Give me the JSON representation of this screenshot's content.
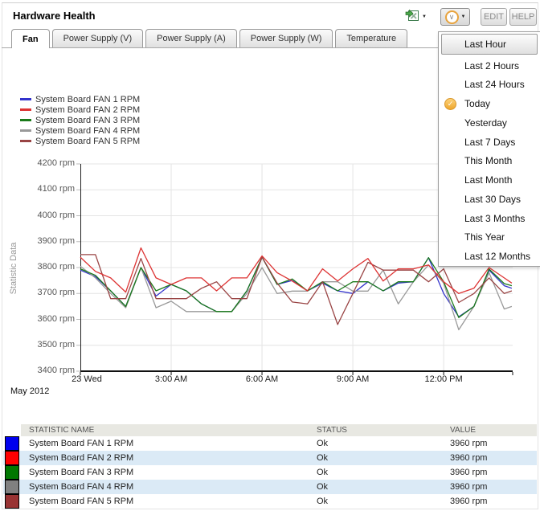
{
  "page": {
    "title": "Hardware Health"
  },
  "toolbar": {
    "export_icon": "excel-export",
    "time_icon": "clock-history",
    "caret": "▼",
    "edit_label": "EDIT",
    "help_label": "HELP"
  },
  "tabs": [
    {
      "label": "Fan",
      "active": true
    },
    {
      "label": "Power Supply (V)",
      "active": false
    },
    {
      "label": "Power Supply (A)",
      "active": false
    },
    {
      "label": "Power Supply (W)",
      "active": false
    },
    {
      "label": "Temperature",
      "active": false
    }
  ],
  "time_menu": {
    "items": [
      {
        "label": "Last Hour",
        "highlighted": true
      },
      {
        "label": "Last 2 Hours"
      },
      {
        "label": "Last 24 Hours"
      },
      {
        "label": "Today",
        "selected": true
      },
      {
        "label": "Yesterday"
      },
      {
        "label": "Last 7 Days"
      },
      {
        "label": "This Month"
      },
      {
        "label": "Last Month"
      },
      {
        "label": "Last 30 Days"
      },
      {
        "label": "Last 3 Months"
      },
      {
        "label": "This Year"
      },
      {
        "label": "Last 12 Months"
      }
    ]
  },
  "chart_data": {
    "type": "line",
    "title": "",
    "ylabel": "Statistic Data",
    "xlabel": "",
    "y_unit": "rpm",
    "ylim": [
      3400,
      4200
    ],
    "y_tick_step": 100,
    "xlim_hours": [
      0,
      14.28
    ],
    "x_ticks": [
      {
        "t": 0,
        "label": "23 Wed"
      },
      {
        "t": 3,
        "label": "3:00 AM"
      },
      {
        "t": 6,
        "label": "6:00 AM"
      },
      {
        "t": 9,
        "label": "9:00 AM"
      },
      {
        "t": 12,
        "label": "12:00 PM"
      }
    ],
    "footnote": "May 2012",
    "grid": true,
    "legend_position": "top-left",
    "x_hours": [
      0,
      0.5,
      1,
      1.5,
      2,
      2.5,
      3,
      3.5,
      4,
      4.5,
      5,
      5.5,
      6,
      6.5,
      7,
      7.5,
      8,
      8.5,
      9,
      9.5,
      10,
      10.5,
      11,
      11.5,
      12,
      12.5,
      13,
      13.5,
      14,
      14.25
    ],
    "series": [
      {
        "name": "System Board FAN 1 RPM",
        "color": "#3333cc",
        "values": [
          3790,
          3765,
          3710,
          3650,
          3800,
          3690,
          3735,
          3710,
          3660,
          3630,
          3630,
          3710,
          3840,
          3735,
          3750,
          3710,
          3740,
          3710,
          3700,
          3745,
          3710,
          3740,
          3745,
          3838,
          3700,
          3610,
          3650,
          3790,
          3730,
          3720
        ]
      },
      {
        "name": "System Board FAN 2 RPM",
        "color": "#dd3333",
        "values": [
          3840,
          3785,
          3760,
          3705,
          3876,
          3760,
          3735,
          3760,
          3760,
          3710,
          3760,
          3760,
          3845,
          3780,
          3748,
          3710,
          3795,
          3748,
          3795,
          3835,
          3748,
          3795,
          3795,
          3810,
          3745,
          3700,
          3720,
          3800,
          3760,
          3740
        ]
      },
      {
        "name": "System Board FAN 3 RPM",
        "color": "#1a7a1a",
        "values": [
          3795,
          3770,
          3710,
          3650,
          3800,
          3710,
          3735,
          3710,
          3660,
          3630,
          3630,
          3710,
          3840,
          3735,
          3756,
          3710,
          3745,
          3710,
          3745,
          3745,
          3710,
          3745,
          3745,
          3838,
          3745,
          3607,
          3650,
          3794,
          3738,
          3730
        ]
      },
      {
        "name": "System Board FAN 4 RPM",
        "color": "#999999",
        "values": [
          3805,
          3760,
          3700,
          3645,
          3800,
          3645,
          3670,
          3630,
          3630,
          3630,
          3630,
          3700,
          3800,
          3700,
          3709,
          3709,
          3745,
          3745,
          3709,
          3709,
          3790,
          3660,
          3745,
          3810,
          3740,
          3560,
          3650,
          3780,
          3640,
          3650
        ]
      },
      {
        "name": "System Board FAN 5 RPM",
        "color": "#994444",
        "values": [
          3850,
          3850,
          3680,
          3680,
          3835,
          3680,
          3680,
          3680,
          3720,
          3745,
          3680,
          3680,
          3840,
          3740,
          3667,
          3660,
          3745,
          3580,
          3700,
          3820,
          3790,
          3790,
          3790,
          3745,
          3795,
          3665,
          3700,
          3760,
          3700,
          3710
        ]
      }
    ]
  },
  "table": {
    "headers": [
      "STATISTIC NAME",
      "STATUS",
      "VALUE"
    ],
    "rows": [
      {
        "swatch": "#0000ee",
        "name": "System Board FAN 1 RPM",
        "status": "Ok",
        "value": "3960 rpm"
      },
      {
        "swatch": "#ff0000",
        "name": "System Board FAN 2 RPM",
        "status": "Ok",
        "value": "3960 rpm"
      },
      {
        "swatch": "#007700",
        "name": "System Board FAN 3 RPM",
        "status": "Ok",
        "value": "3960 rpm"
      },
      {
        "swatch": "#808080",
        "name": "System Board FAN 4 RPM",
        "status": "Ok",
        "value": "3960 rpm"
      },
      {
        "swatch": "#993333",
        "name": "System Board FAN 5 RPM",
        "status": "Ok",
        "value": "3960 rpm"
      }
    ]
  }
}
